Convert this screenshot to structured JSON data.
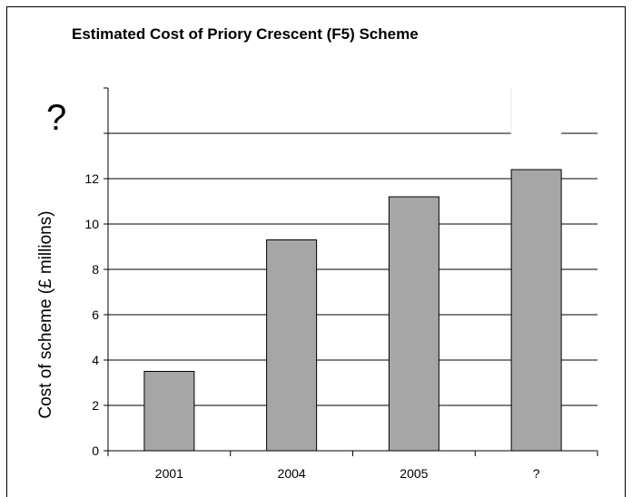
{
  "chart_data": {
    "type": "bar",
    "title": "Estimated Cost of Priory Crescent (F5) Scheme",
    "xlabel": "",
    "ylabel": "Cost of scheme (£ millions)",
    "categories": [
      "2001",
      "2004",
      "2005",
      "?"
    ],
    "values": [
      3.5,
      9.3,
      11.2,
      12.4
    ],
    "ylim": [
      0,
      16
    ],
    "yticks": [
      "0",
      "2",
      "4",
      "6",
      "8",
      "10",
      "12"
    ],
    "unknown_extension_label": "?",
    "grid": true,
    "bar_color": "#a6a6a6"
  }
}
